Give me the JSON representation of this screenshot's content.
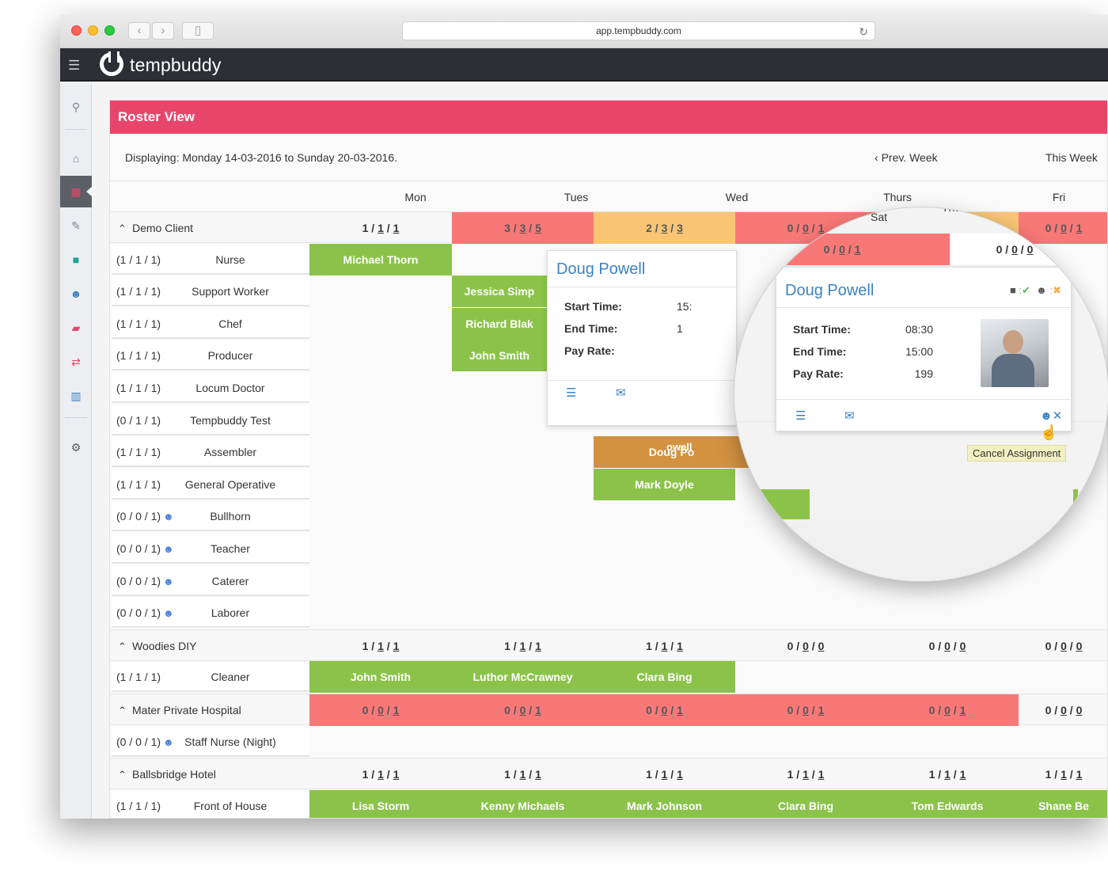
{
  "browser": {
    "url": "app.tempbuddy.com"
  },
  "app": {
    "logo_text": "tempbuddy"
  },
  "page": {
    "title": "Roster View",
    "displaying": "Displaying: Monday 14-03-2016 to Sunday 20-03-2016.",
    "prev_week": "Prev. Week",
    "this_week": "This Week"
  },
  "days": [
    "Mon",
    "Tues",
    "Wed",
    "Thurs",
    "Fri"
  ],
  "sidebar_icons": [
    "search-icon",
    "home-icon",
    "calendar-grid-icon",
    "edit-icon",
    "briefcase-icon",
    "users-icon",
    "book-icon",
    "retweet-icon",
    "bar-chart-icon",
    "gear-icon"
  ],
  "clients": [
    {
      "name": "Demo Client",
      "totals": [
        [
          "1",
          "1",
          "1"
        ],
        [
          "3",
          "3",
          "5"
        ],
        [
          "2",
          "3",
          "3"
        ],
        [
          "0",
          "0",
          "1"
        ],
        [
          "0",
          "0",
          "0"
        ],
        [
          "0",
          "0",
          "1"
        ]
      ],
      "total_colors": [
        "n",
        "r",
        "o",
        "r",
        "o",
        "r"
      ],
      "roles": [
        {
          "counts": "(1 / 1 / 1)",
          "name": "Nurse",
          "group": false
        },
        {
          "counts": "(1 / 1 / 1)",
          "name": "Support Worker",
          "group": false
        },
        {
          "counts": "(1 / 1 / 1)",
          "name": "Chef",
          "group": false
        },
        {
          "counts": "(1 / 1 / 1)",
          "name": "Producer",
          "group": false
        },
        {
          "counts": "(1 / 1 / 1)",
          "name": "Locum Doctor",
          "group": false
        },
        {
          "counts": "(0 / 1 / 1)",
          "name": "Tempbuddy Test",
          "group": false
        },
        {
          "counts": "(1 / 1 / 1)",
          "name": "Assembler",
          "group": false
        },
        {
          "counts": "(1 / 1 / 1)",
          "name": "General Operative",
          "group": false
        },
        {
          "counts": "(0 / 0 / 1)",
          "name": "Bullhorn",
          "group": true
        },
        {
          "counts": "(0 / 0 / 1)",
          "name": "Teacher",
          "group": true
        },
        {
          "counts": "(0 / 0 / 1)",
          "name": "Caterer",
          "group": true
        },
        {
          "counts": "(0 / 0 / 1)",
          "name": "Laborer",
          "group": true
        }
      ]
    },
    {
      "name": "Woodies DIY",
      "totals": [
        [
          "1",
          "1",
          "1"
        ],
        [
          "1",
          "1",
          "1"
        ],
        [
          "1",
          "1",
          "1"
        ],
        [
          "0",
          "0",
          "0"
        ],
        [
          "0",
          "0",
          "0"
        ],
        [
          "0",
          "0",
          "0"
        ]
      ],
      "total_colors": [
        "n",
        "n",
        "n",
        "n",
        "n",
        "n"
      ],
      "roles": [
        {
          "counts": "(1 / 1 / 1)",
          "name": "Cleaner",
          "group": false
        }
      ]
    },
    {
      "name": "Mater Private Hospital",
      "totals": [
        [
          "0",
          "0",
          "1"
        ],
        [
          "0",
          "0",
          "1"
        ],
        [
          "0",
          "0",
          "1"
        ],
        [
          "0",
          "0",
          "1"
        ],
        [
          "0",
          "0",
          "1"
        ],
        [
          "0",
          "0",
          "0"
        ]
      ],
      "total_colors": [
        "r",
        "r",
        "r",
        "r",
        "r",
        "n"
      ],
      "roles": [
        {
          "counts": "(0 / 0 / 1)",
          "name": "Staff Nurse (Night)",
          "group": true
        }
      ]
    },
    {
      "name": "Ballsbridge Hotel",
      "totals": [
        [
          "1",
          "1",
          "1"
        ],
        [
          "1",
          "1",
          "1"
        ],
        [
          "1",
          "1",
          "1"
        ],
        [
          "1",
          "1",
          "1"
        ],
        [
          "1",
          "1",
          "1"
        ],
        [
          "1",
          "1",
          "1"
        ]
      ],
      "total_colors": [
        "n",
        "n",
        "n",
        "n",
        "n",
        "n"
      ],
      "roles": [
        {
          "counts": "(1 / 1 / 1)",
          "name": "Front of House",
          "group": false
        }
      ]
    }
  ],
  "assignments": {
    "michael_thorn": "Michael Thorn",
    "jessica": "Jessica Simp",
    "richard": "Richard Blak",
    "john_smith_1": "John Smith",
    "doug": "Doug Po",
    "doug_tail": "owell",
    "mark_doyle": "Mark Doyle",
    "john_smith_2": "John Smith",
    "luthor": "Luthor McCrawney",
    "clara_1": "Clara Bing",
    "lisa": "Lisa Storm",
    "kenny": "Kenny Michaels",
    "mark_johnson": "Mark Johnson",
    "clara_2": "Clara Bing",
    "tom": "Tom Edwards",
    "shane": "Shane Be"
  },
  "popup": {
    "name": "Doug Powell",
    "start_label": "Start Time:",
    "end_label": "End Time:",
    "pay_label": "Pay Rate:",
    "start_partial": "15:",
    "end_partial": "1"
  },
  "magnified": {
    "sat": "Sat",
    "thurs": "Thurs",
    "cells": [
      [
        "0",
        "0",
        "1"
      ],
      [
        "0",
        "0",
        "0"
      ]
    ],
    "name": "Doug Powell",
    "start_label": "Start Time:",
    "start_value": "08:30",
    "end_label": "End Time:",
    "end_value": "15:00",
    "pay_label": "Pay Rate:",
    "pay_value": "199",
    "tooltip": "Cancel Assignment"
  }
}
